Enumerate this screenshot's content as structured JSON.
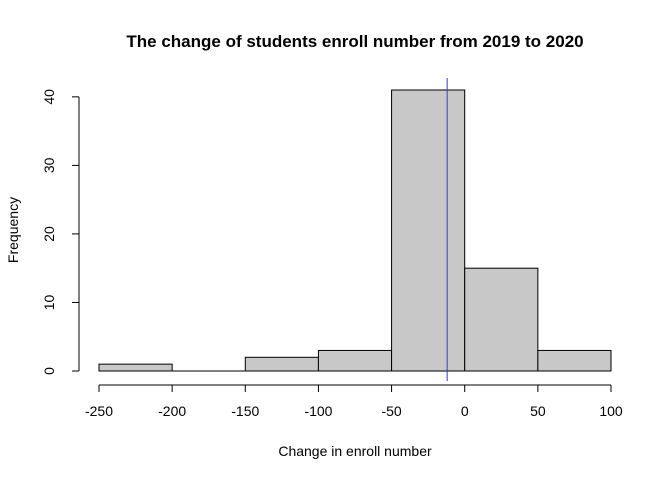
{
  "chart_data": {
    "type": "histogram",
    "title": "The change of students enroll number from 2019 to 2020",
    "xlabel": "Change in enroll number",
    "ylabel": "Frequency",
    "bins": [
      {
        "from": -250,
        "to": -200,
        "count": 1
      },
      {
        "from": -200,
        "to": -150,
        "count": 0
      },
      {
        "from": -150,
        "to": -100,
        "count": 2
      },
      {
        "from": -100,
        "to": -50,
        "count": 3
      },
      {
        "from": -50,
        "to": 0,
        "count": 41
      },
      {
        "from": 0,
        "to": 50,
        "count": 15
      },
      {
        "from": 50,
        "to": 100,
        "count": 3
      }
    ],
    "xlim": [
      -250,
      100
    ],
    "ylim": [
      0,
      41
    ],
    "xticks": [
      -250,
      -200,
      -150,
      -100,
      -50,
      0,
      50,
      100
    ],
    "xtick_labels": [
      "-250",
      "-200",
      "-150",
      "-100",
      "-50",
      "0",
      "50",
      "100"
    ],
    "yticks": [
      0,
      10,
      20,
      30,
      40
    ],
    "ytick_labels": [
      "0",
      "10",
      "20",
      "30",
      "40"
    ],
    "reference_line": {
      "x": -12,
      "color": "#3333ff"
    },
    "bar_fill": "#c8c8c8",
    "bar_stroke": "#000000",
    "grid": false,
    "legend": "none"
  }
}
